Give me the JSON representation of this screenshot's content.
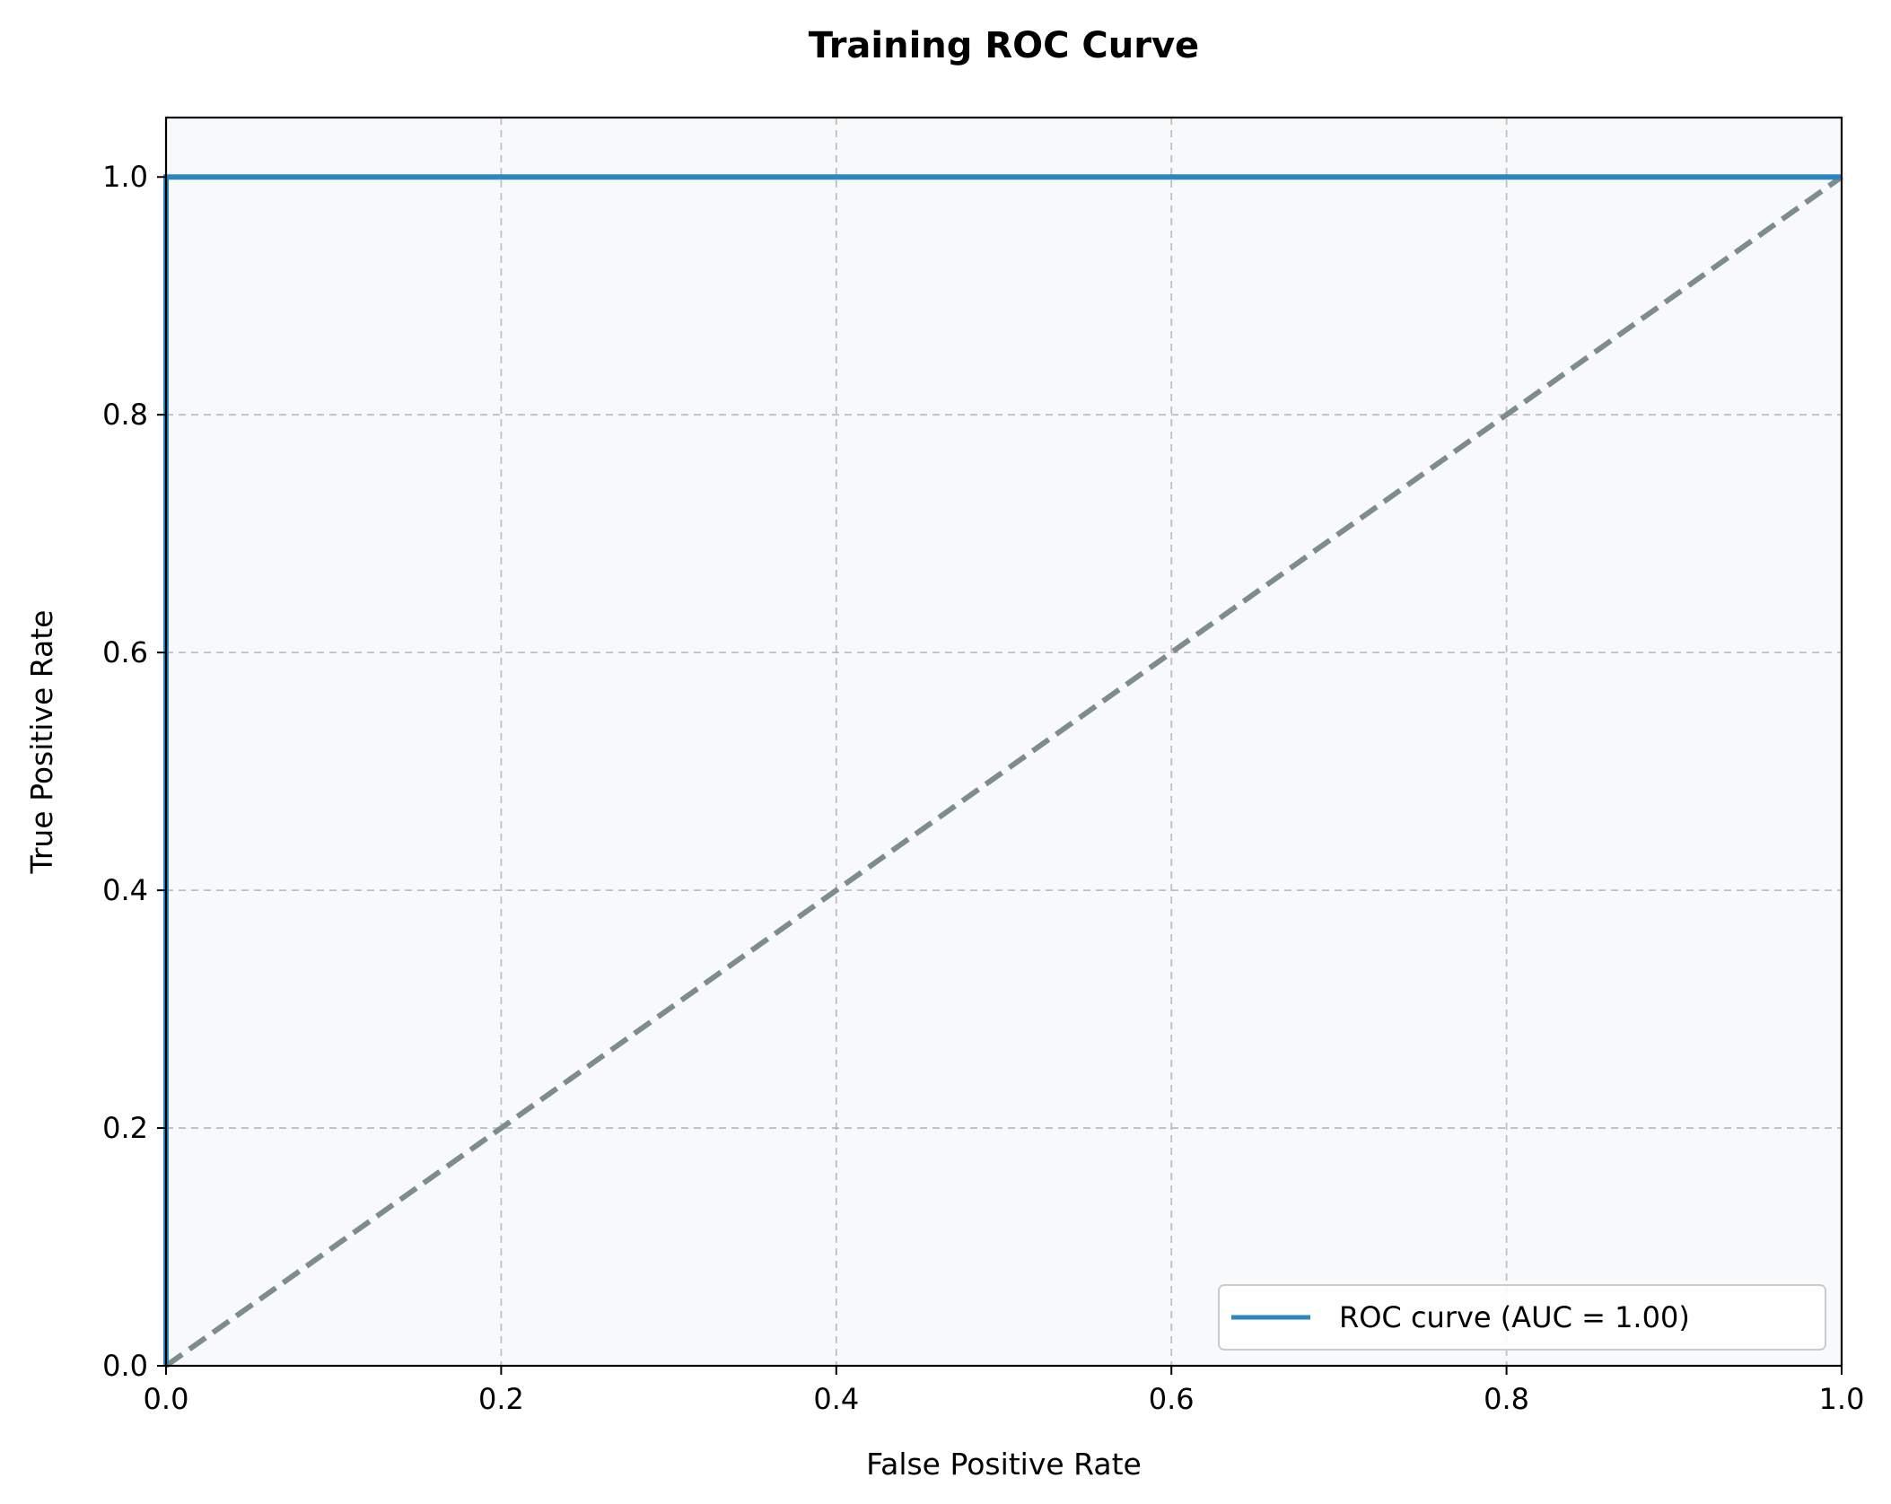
{
  "chart_data": {
    "type": "line",
    "title": "Training ROC Curve",
    "xlabel": "False Positive Rate",
    "ylabel": "True Positive Rate",
    "xlim": [
      0.0,
      1.0
    ],
    "ylim": [
      0.0,
      1.05
    ],
    "xticks": [
      0.0,
      0.2,
      0.4,
      0.6,
      0.8,
      1.0
    ],
    "yticks": [
      0.0,
      0.2,
      0.4,
      0.6,
      0.8,
      1.0
    ],
    "xtick_labels": [
      "0.0",
      "0.2",
      "0.4",
      "0.6",
      "0.8",
      "1.0"
    ],
    "ytick_labels": [
      "0.0",
      "0.2",
      "0.4",
      "0.6",
      "0.8",
      "1.0"
    ],
    "grid": true,
    "legend_position": "lower-right",
    "background_color": "#f7f9fb",
    "series": [
      {
        "name": "ROC curve (AUC = 1.00)",
        "color": "#2e86c1",
        "style": "solid",
        "x": [
          0.0,
          0.0,
          1.0
        ],
        "y": [
          0.0,
          1.0,
          1.0
        ]
      },
      {
        "color": "#7f8c8d",
        "style": "dashed",
        "x": [
          0.0,
          1.0
        ],
        "y": [
          0.0,
          1.0
        ]
      }
    ]
  }
}
